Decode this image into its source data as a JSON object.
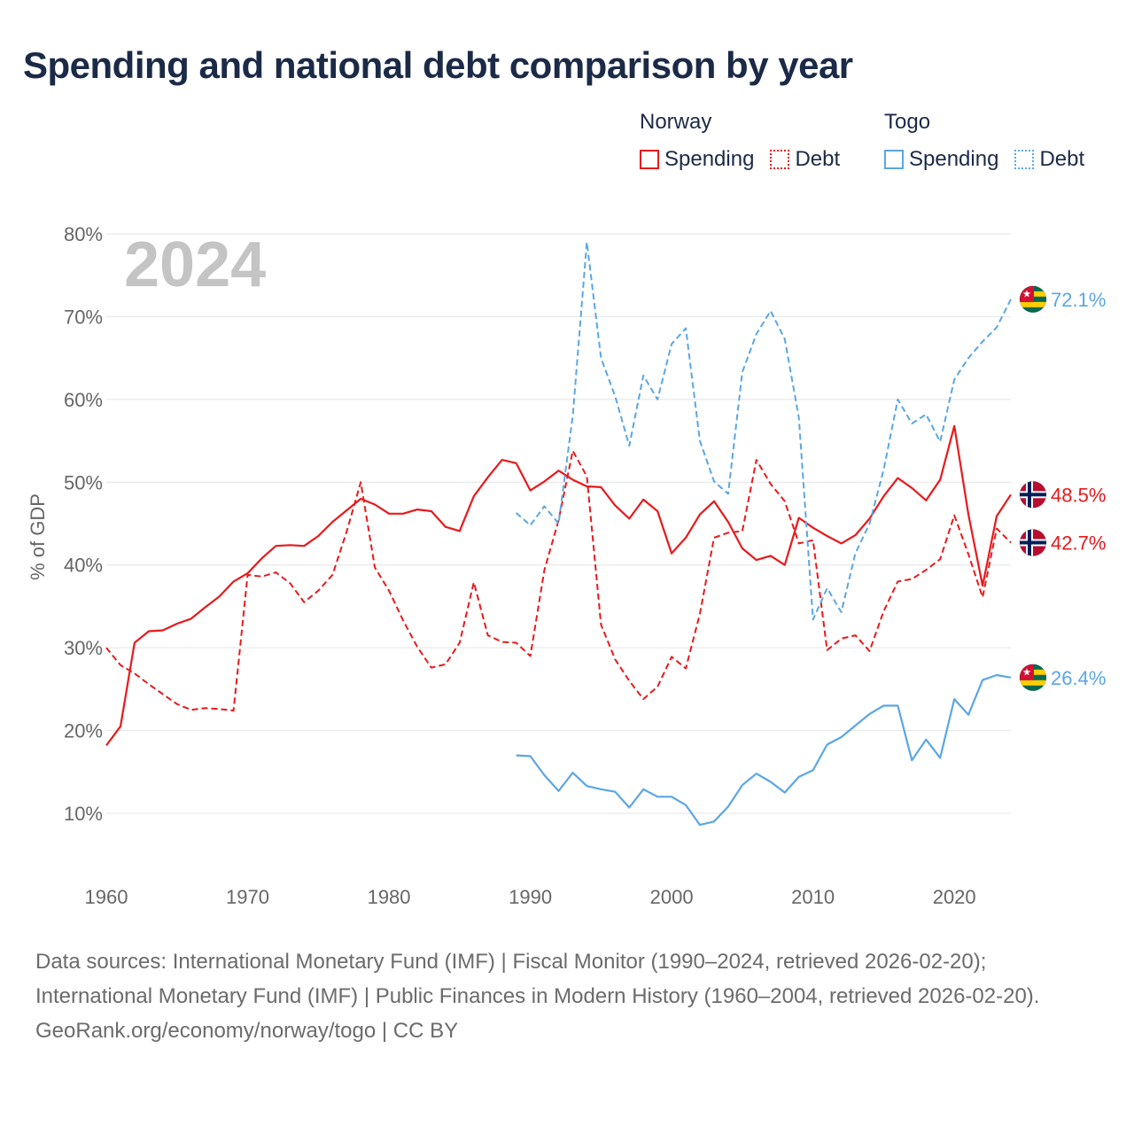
{
  "title": "Spending and national debt comparison by year",
  "legend": {
    "groups": [
      {
        "name": "Norway",
        "color": "#e8191c",
        "items": [
          {
            "label": "Spending",
            "style": "solid"
          },
          {
            "label": "Debt",
            "style": "dotted"
          }
        ]
      },
      {
        "name": "Togo",
        "color": "#5ba6e3",
        "items": [
          {
            "label": "Spending",
            "style": "solid"
          },
          {
            "label": "Debt",
            "style": "dotted"
          }
        ]
      }
    ]
  },
  "year_watermark": "2024",
  "footer": {
    "sources": "Data sources: International Monetary Fund (IMF) | Fiscal Monitor (1990–2024, retrieved 2026-02-20); International Monetary Fund (IMF) | Public Finances in Modern History (1960–2004, retrieved 2026-02-20).",
    "credit": "GeoRank.org/economy/norway/togo | CC BY"
  },
  "chart_data": {
    "type": "line",
    "title": "Spending and national debt comparison by year",
    "xlabel": "",
    "ylabel": "% of GDP",
    "xlim": [
      1960,
      2024
    ],
    "ylim": [
      0,
      80
    ],
    "x_ticks": [
      1960,
      1970,
      1980,
      1990,
      2000,
      2010,
      2020
    ],
    "y_ticks": [
      10,
      20,
      30,
      40,
      50,
      60,
      70,
      80
    ],
    "y_tick_labels": [
      "10%",
      "20%",
      "30%",
      "40%",
      "50%",
      "60%",
      "70%",
      "80%"
    ],
    "grid": true,
    "series": [
      {
        "name": "Norway Spending",
        "country": "Norway",
        "color": "#e8191c",
        "dash": false,
        "end_label": "48.5%",
        "flag": "norway",
        "start": 1960,
        "values": [
          18.2,
          20.5,
          30.6,
          32.0,
          32.1,
          32.9,
          33.5,
          34.9,
          36.2,
          38.0,
          39.0,
          40.8,
          42.3,
          42.4,
          42.3,
          43.5,
          45.2,
          46.6,
          48.0,
          47.3,
          46.2,
          46.2,
          46.7,
          46.5,
          44.6,
          44.1,
          48.3,
          50.6,
          52.7,
          52.3,
          49.0,
          50.1,
          51.4,
          50.3,
          49.5,
          49.4,
          47.2,
          45.6,
          47.9,
          46.5,
          41.4,
          43.3,
          46.1,
          47.7,
          45.2,
          42.0,
          40.6,
          41.1,
          40.0,
          45.7,
          44.5,
          43.5,
          42.6,
          43.6,
          45.6,
          48.3,
          50.5,
          49.3,
          47.8,
          50.3,
          56.8,
          46.1,
          37.5,
          45.9,
          48.5
        ]
      },
      {
        "name": "Norway Debt",
        "country": "Norway",
        "color": "#e8191c",
        "dash": true,
        "end_label": "42.7%",
        "flag": "norway",
        "start": 1960,
        "values": [
          30.0,
          27.9,
          26.9,
          25.6,
          24.4,
          23.2,
          22.5,
          22.7,
          22.6,
          22.4,
          38.8,
          38.6,
          39.1,
          37.8,
          35.5,
          36.9,
          38.8,
          44.0,
          50.0,
          39.7,
          36.9,
          33.3,
          30.1,
          27.6,
          28.0,
          30.6,
          37.9,
          31.5,
          30.7,
          30.6,
          29.0,
          39.4,
          45.4,
          53.8,
          50.7,
          32.8,
          28.6,
          26.0,
          23.8,
          25.3,
          28.9,
          27.5,
          34.1,
          43.3,
          43.9,
          44.1,
          52.7,
          49.8,
          47.7,
          42.6,
          43.0,
          29.7,
          31.1,
          31.5,
          29.6,
          34.4,
          38.0,
          38.3,
          39.4,
          40.7,
          46.0,
          41.3,
          36.1,
          44.4,
          42.7
        ]
      },
      {
        "name": "Togo Spending",
        "country": "Togo",
        "color": "#5ba6e3",
        "dash": false,
        "end_label": "26.4%",
        "flag": "togo",
        "start": 1989,
        "values": [
          17.0,
          16.9,
          14.6,
          12.7,
          14.9,
          13.3,
          12.9,
          12.6,
          10.7,
          12.9,
          12.0,
          12.0,
          11.0,
          8.6,
          9.0,
          10.8,
          13.4,
          14.8,
          13.8,
          12.5,
          14.4,
          15.2,
          18.3,
          19.2,
          20.6,
          22.0,
          23.0,
          23.0,
          16.4,
          18.9,
          16.7,
          23.8,
          21.9,
          26.1,
          26.7,
          26.4
        ]
      },
      {
        "name": "Togo Debt",
        "country": "Togo",
        "color": "#5ba6e3",
        "dash": true,
        "end_label": "72.1%",
        "flag": "togo",
        "start": 1989,
        "values": [
          46.3,
          44.8,
          47.1,
          45.0,
          58.0,
          79.0,
          65.0,
          60.4,
          54.4,
          62.9,
          60.0,
          66.7,
          68.6,
          55.0,
          50.1,
          48.6,
          63.3,
          67.9,
          70.7,
          67.3,
          57.8,
          33.4,
          37.2,
          34.3,
          41.4,
          45.0,
          51.5,
          60.0,
          57.1,
          58.2,
          54.9,
          62.4,
          65.0,
          67.0,
          68.7,
          72.1
        ]
      }
    ]
  }
}
